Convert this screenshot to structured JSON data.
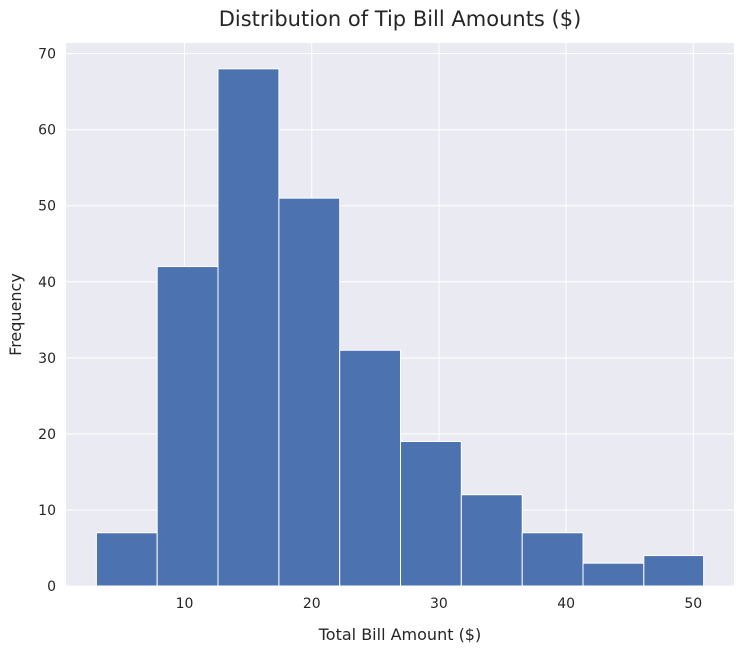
{
  "chart_data": {
    "type": "histogram",
    "title": "Distribution of Tip Bill Amounts ($)",
    "xlabel": "Total Bill Amount ($)",
    "ylabel": "Frequency",
    "bins": [
      {
        "x0": 3.07,
        "x1": 7.85,
        "count": 7
      },
      {
        "x0": 7.85,
        "x1": 12.63,
        "count": 42
      },
      {
        "x0": 12.63,
        "x1": 17.42,
        "count": 68
      },
      {
        "x0": 17.42,
        "x1": 22.2,
        "count": 51
      },
      {
        "x0": 22.2,
        "x1": 26.98,
        "count": 31
      },
      {
        "x0": 26.98,
        "x1": 31.76,
        "count": 19
      },
      {
        "x0": 31.76,
        "x1": 36.55,
        "count": 12
      },
      {
        "x0": 36.55,
        "x1": 41.33,
        "count": 7
      },
      {
        "x0": 41.33,
        "x1": 46.11,
        "count": 3
      },
      {
        "x0": 46.11,
        "x1": 50.81,
        "count": 4
      }
    ],
    "xlim": [
      0.68,
      53.2
    ],
    "ylim": [
      0,
      71.4
    ],
    "xticks": [
      10,
      20,
      30,
      40,
      50
    ],
    "yticks": [
      0,
      10,
      20,
      30,
      40,
      50,
      60,
      70
    ],
    "grid": true,
    "colors": {
      "bar": "#4c72b0",
      "bar_edge": "#ffffff",
      "plot_background": "#eaeaf2",
      "grid": "#ffffff"
    }
  }
}
